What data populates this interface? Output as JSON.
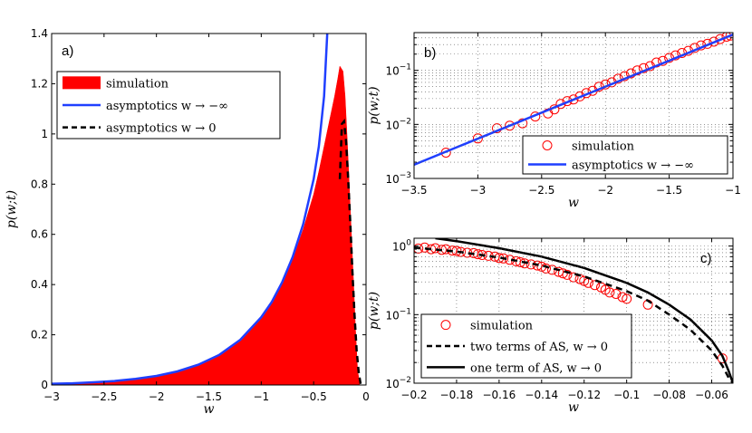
{
  "chart_data": [
    {
      "panel": "a)",
      "type": "area",
      "xlabel": "w",
      "ylabel": "p(w;t)",
      "xlim": [
        -3,
        0
      ],
      "ylim": [
        0,
        1.4
      ],
      "xticks": [
        -3,
        -2.5,
        -2,
        -1.5,
        -1,
        -0.5,
        0
      ],
      "xtick_labels": [
        "−3",
        "−2.5",
        "−2",
        "−1.5",
        "−1",
        "−0.5",
        "0"
      ],
      "yticks": [
        0,
        0.2,
        0.4,
        0.6,
        0.8,
        1,
        1.2,
        1.4
      ],
      "ytick_labels": [
        "0",
        "0.2",
        "0.4",
        "0.6",
        "0.8",
        "1",
        "1.2",
        "1.4"
      ],
      "legend_position": "top-left",
      "grid": false,
      "series": [
        {
          "name": "simulation",
          "kind": "histogram",
          "color": "#ff0000",
          "x": [
            -3.0,
            -2.8,
            -2.6,
            -2.4,
            -2.2,
            -2.0,
            -1.8,
            -1.6,
            -1.4,
            -1.2,
            -1.0,
            -0.9,
            -0.8,
            -0.7,
            -0.6,
            -0.5,
            -0.45,
            -0.4,
            -0.35,
            -0.3,
            -0.27,
            -0.25,
            -0.22,
            -0.2,
            -0.18,
            -0.15,
            -0.12,
            -0.1,
            -0.08,
            -0.06
          ],
          "y": [
            0.005,
            0.007,
            0.011,
            0.016,
            0.024,
            0.036,
            0.054,
            0.081,
            0.12,
            0.18,
            0.27,
            0.33,
            0.41,
            0.5,
            0.62,
            0.76,
            0.85,
            0.95,
            1.05,
            1.15,
            1.22,
            1.27,
            1.25,
            1.15,
            0.98,
            0.7,
            0.42,
            0.22,
            0.06,
            0.0
          ]
        },
        {
          "name": "asymptotics w → −∞",
          "kind": "line",
          "color": "#1f3fff",
          "x": [
            -3.0,
            -2.8,
            -2.6,
            -2.4,
            -2.2,
            -2.0,
            -1.8,
            -1.6,
            -1.4,
            -1.2,
            -1.0,
            -0.9,
            -0.8,
            -0.7,
            -0.6,
            -0.5,
            -0.45,
            -0.4,
            -0.37
          ],
          "y": [
            0.005,
            0.007,
            0.011,
            0.016,
            0.024,
            0.036,
            0.054,
            0.081,
            0.12,
            0.18,
            0.27,
            0.33,
            0.41,
            0.51,
            0.64,
            0.82,
            0.95,
            1.15,
            1.4
          ]
        },
        {
          "name": "asymptotics w → 0",
          "kind": "dashed",
          "color": "#000000",
          "x": [
            -0.25,
            -0.23,
            -0.21,
            -0.19,
            -0.17,
            -0.15,
            -0.13,
            -0.11,
            -0.09,
            -0.07,
            -0.05
          ],
          "y": [
            0.82,
            1.04,
            1.05,
            0.97,
            0.82,
            0.64,
            0.45,
            0.28,
            0.14,
            0.05,
            0.0
          ]
        }
      ]
    },
    {
      "panel": "b)",
      "type": "scatter",
      "xlabel": "w",
      "ylabel": "p(w;t)",
      "xlim": [
        -3.5,
        -1
      ],
      "ylim": [
        0.001,
        0.5
      ],
      "yscale": "log",
      "xticks": [
        -3.5,
        -3,
        -2.5,
        -2,
        -1.5,
        -1
      ],
      "xtick_labels": [
        "−3.5",
        "−3",
        "−2.5",
        "−2",
        "−1.5",
        "−1"
      ],
      "ytick_labels": [
        {
          "value": 0.001,
          "base": "10",
          "exp": "−3"
        },
        {
          "value": 0.01,
          "base": "10",
          "exp": "−2"
        },
        {
          "value": 0.1,
          "base": "10",
          "exp": "−1"
        }
      ],
      "legend_position": "bottom-right",
      "grid": true,
      "series": [
        {
          "name": "simulation",
          "kind": "markers",
          "color": "#ff0000",
          "x": [
            -3.25,
            -3.0,
            -2.85,
            -2.75,
            -2.65,
            -2.55,
            -2.45,
            -2.4,
            -2.35,
            -2.3,
            -2.25,
            -2.2,
            -2.15,
            -2.1,
            -2.05,
            -2.0,
            -1.95,
            -1.9,
            -1.85,
            -1.8,
            -1.75,
            -1.7,
            -1.65,
            -1.6,
            -1.55,
            -1.5,
            -1.45,
            -1.4,
            -1.35,
            -1.3,
            -1.25,
            -1.2,
            -1.15,
            -1.1,
            -1.05,
            -1.02
          ],
          "y": [
            0.003,
            0.0055,
            0.0085,
            0.0095,
            0.0105,
            0.014,
            0.016,
            0.019,
            0.024,
            0.027,
            0.029,
            0.033,
            0.038,
            0.042,
            0.05,
            0.055,
            0.06,
            0.07,
            0.078,
            0.088,
            0.1,
            0.11,
            0.12,
            0.14,
            0.15,
            0.17,
            0.19,
            0.21,
            0.23,
            0.26,
            0.29,
            0.31,
            0.34,
            0.38,
            0.42,
            0.44
          ]
        },
        {
          "name": "asymptotics w → −∞",
          "kind": "line",
          "color": "#1f3fff",
          "x": [
            -3.5,
            -1.0
          ],
          "y": [
            0.0018,
            0.46
          ]
        }
      ]
    },
    {
      "panel": "c)",
      "type": "scatter",
      "xlabel": "w",
      "ylabel": "p(w;t)",
      "xlim": [
        -0.2,
        -0.05
      ],
      "ylim": [
        0.01,
        1.3
      ],
      "yscale": "log",
      "xticks": [
        -0.2,
        -0.18,
        -0.16,
        -0.14,
        -0.12,
        -0.1,
        -0.08,
        -0.06
      ],
      "xtick_labels": [
        "−0.2",
        "−0.18",
        "−0.16",
        "−0.14",
        "−0.12",
        "−0.1",
        "−0.08",
        "−0.06"
      ],
      "ytick_labels": [
        {
          "value": 0.01,
          "base": "10",
          "exp": "−2"
        },
        {
          "value": 0.1,
          "base": "10",
          "exp": "−1"
        },
        {
          "value": 1,
          "base": "10",
          "exp": "0"
        }
      ],
      "legend_position": "bottom-left",
      "grid": true,
      "series": [
        {
          "name": "simulation",
          "kind": "markers",
          "color": "#ff0000",
          "x": [
            -0.198,
            -0.195,
            -0.192,
            -0.19,
            -0.187,
            -0.185,
            -0.182,
            -0.18,
            -0.178,
            -0.175,
            -0.172,
            -0.17,
            -0.168,
            -0.165,
            -0.162,
            -0.16,
            -0.158,
            -0.155,
            -0.152,
            -0.15,
            -0.148,
            -0.145,
            -0.142,
            -0.14,
            -0.138,
            -0.135,
            -0.132,
            -0.13,
            -0.128,
            -0.125,
            -0.122,
            -0.12,
            -0.118,
            -0.115,
            -0.112,
            -0.11,
            -0.108,
            -0.105,
            -0.102,
            -0.1,
            -0.09,
            -0.055
          ],
          "y": [
            0.92,
            0.95,
            0.9,
            0.93,
            0.88,
            0.9,
            0.86,
            0.85,
            0.82,
            0.8,
            0.79,
            0.76,
            0.74,
            0.72,
            0.7,
            0.67,
            0.66,
            0.63,
            0.6,
            0.58,
            0.56,
            0.54,
            0.52,
            0.5,
            0.47,
            0.45,
            0.42,
            0.4,
            0.38,
            0.35,
            0.33,
            0.31,
            0.29,
            0.27,
            0.25,
            0.23,
            0.21,
            0.2,
            0.18,
            0.17,
            0.14,
            0.023
          ]
        },
        {
          "name": "two terms of AS, w → 0",
          "kind": "dashed",
          "color": "#000000",
          "x": [
            -0.2,
            -0.18,
            -0.16,
            -0.14,
            -0.12,
            -0.1,
            -0.09,
            -0.08,
            -0.07,
            -0.06,
            -0.055,
            -0.052,
            -0.05
          ],
          "y": [
            0.95,
            0.83,
            0.68,
            0.52,
            0.36,
            0.22,
            0.16,
            0.1,
            0.06,
            0.03,
            0.018,
            0.012,
            0.01
          ]
        },
        {
          "name": "one term of AS, w → 0",
          "kind": "line",
          "color": "#000000",
          "x": [
            -0.19,
            -0.18,
            -0.16,
            -0.14,
            -0.12,
            -0.1,
            -0.09,
            -0.08,
            -0.07,
            -0.06,
            -0.055,
            -0.052,
            -0.05
          ],
          "y": [
            1.3,
            1.18,
            0.93,
            0.7,
            0.48,
            0.29,
            0.21,
            0.14,
            0.085,
            0.042,
            0.025,
            0.015,
            0.01
          ]
        }
      ]
    }
  ]
}
